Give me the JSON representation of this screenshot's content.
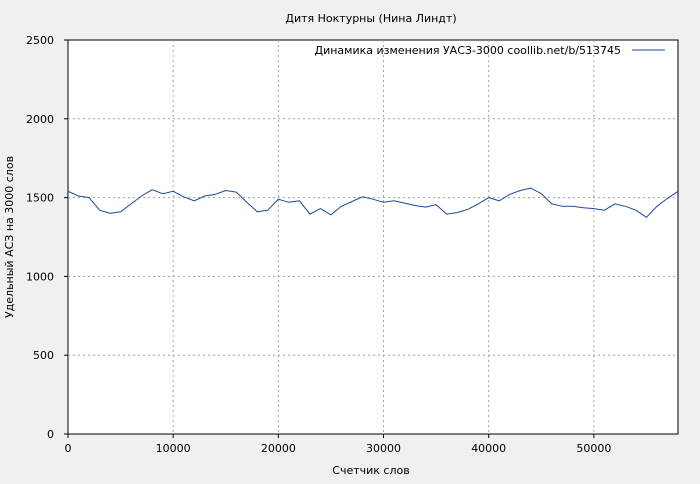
{
  "chart_data": {
    "type": "line",
    "title": "Дитя Ноктурны (Нина Линдт)",
    "xlabel": "Счетчик слов",
    "ylabel": "Удельный АСЗ на 3000 слов",
    "xlim": [
      0,
      58000
    ],
    "ylim": [
      0,
      2500
    ],
    "xticks": [
      0,
      10000,
      20000,
      30000,
      40000,
      50000
    ],
    "yticks": [
      0,
      500,
      1000,
      1500,
      2000,
      2500
    ],
    "grid": true,
    "legend_position": "top-right",
    "series": [
      {
        "name": "Динамика изменения УАСЗ-3000  coollib.net/b/513745",
        "color": "#1a4a9a",
        "x": [
          0,
          1000,
          2000,
          3000,
          4000,
          5000,
          6000,
          7000,
          8000,
          9000,
          10000,
          11000,
          12000,
          13000,
          14000,
          15000,
          16000,
          17000,
          18000,
          19000,
          20000,
          21000,
          22000,
          23000,
          24000,
          25000,
          26000,
          27000,
          28000,
          29000,
          30000,
          31000,
          32000,
          33000,
          34000,
          35000,
          36000,
          37000,
          38000,
          39000,
          40000,
          41000,
          42000,
          43000,
          44000,
          45000,
          46000,
          47000,
          48000,
          49000,
          50000,
          51000,
          52000,
          53000,
          54000,
          55000,
          56000,
          57000,
          58000
        ],
        "y": [
          1540,
          1510,
          1500,
          1420,
          1400,
          1410,
          1460,
          1510,
          1550,
          1525,
          1540,
          1505,
          1480,
          1510,
          1520,
          1545,
          1535,
          1470,
          1410,
          1420,
          1490,
          1470,
          1480,
          1395,
          1430,
          1390,
          1445,
          1475,
          1505,
          1490,
          1470,
          1480,
          1465,
          1450,
          1440,
          1455,
          1395,
          1405,
          1425,
          1460,
          1500,
          1480,
          1520,
          1545,
          1560,
          1525,
          1460,
          1445,
          1445,
          1435,
          1430,
          1420,
          1460,
          1445,
          1420,
          1375,
          1445,
          1495,
          1540
        ]
      }
    ]
  }
}
